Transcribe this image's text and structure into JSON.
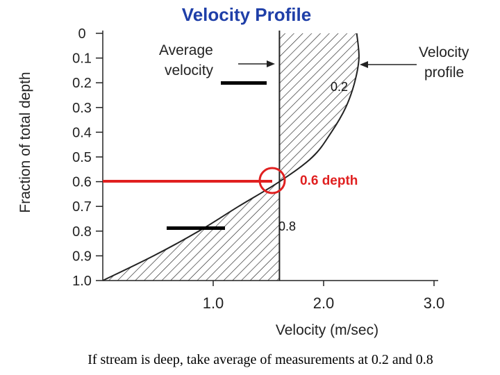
{
  "slide": {
    "title": "Velocity Profile",
    "caption": "If stream is deep, take average of measurements at 0.2 and 0.8"
  },
  "chart_data": {
    "type": "line",
    "title": "Velocity Profile",
    "xlabel": "Velocity (m/sec)",
    "ylabel": "Fraction of total depth",
    "xlim": [
      0,
      3.0
    ],
    "ylim": [
      0,
      1.0
    ],
    "x_ticks": [
      "1.0",
      "2.0",
      "3.0"
    ],
    "y_ticks": [
      "0",
      "0.1",
      "0.2",
      "0.3",
      "0.4",
      "0.5",
      "0.6",
      "0.7",
      "0.8",
      "0.9",
      "1.0"
    ],
    "series": [
      {
        "name": "Velocity profile",
        "points": [
          {
            "depth": 0.0,
            "velocity": 2.3
          },
          {
            "depth": 0.1,
            "velocity": 2.32
          },
          {
            "depth": 0.2,
            "velocity": 2.28
          },
          {
            "depth": 0.3,
            "velocity": 2.2
          },
          {
            "depth": 0.4,
            "velocity": 2.07
          },
          {
            "depth": 0.5,
            "velocity": 1.9
          },
          {
            "depth": 0.6,
            "velocity": 1.6
          },
          {
            "depth": 0.7,
            "velocity": 1.23
          },
          {
            "depth": 0.8,
            "velocity": 0.87
          },
          {
            "depth": 0.9,
            "velocity": 0.46
          },
          {
            "depth": 1.0,
            "velocity": 0.0
          }
        ]
      }
    ],
    "average_velocity": 1.6,
    "annotations": {
      "average_label_line1": "Average",
      "average_label_line2": "velocity",
      "profile_label_line1": "Velocity",
      "profile_label_line2": "profile",
      "mark_02": "0.2",
      "mark_06": "0.6 depth",
      "mark_08": "0.8"
    },
    "colors": {
      "highlight": "#e02020",
      "axis": "#222222",
      "title": "#1f3fa8"
    }
  }
}
